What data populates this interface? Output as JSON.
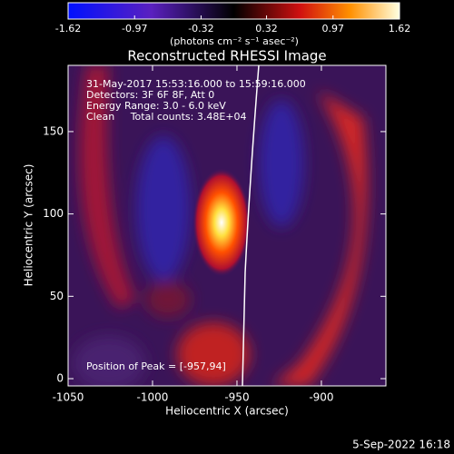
{
  "chart_data": {
    "type": "image",
    "title": "Reconstructed RHESSI Image",
    "colorbar_label": "(photons cm⁻² s⁻¹ asec⁻²)",
    "clim": [
      -1.62,
      1.62
    ],
    "cticks": [
      -1.62,
      -0.97,
      -0.32,
      0.32,
      0.97,
      1.62
    ],
    "x_label": "Heliocentric X (arcsec)",
    "y_label": "Heliocentric Y (arcsec)",
    "xlim": [
      -1050,
      -861.8
    ],
    "ylim": [
      -4.4,
      190.2
    ],
    "xticks": [
      -1050,
      -1000,
      -950,
      -900
    ],
    "yticks": [
      0,
      50,
      100,
      150
    ],
    "annotations": [
      "31-May-2017 15:53:16.000 to 15:59:16.000",
      "Detectors: 3F 6F 8F, Att 0",
      "Energy Range: 3.0 - 6.0 keV",
      "Clean     Total counts: 3.48E+04"
    ],
    "peak_label": "Position of Peak = [-957,94]",
    "footer": "5-Sep-2022 16:18"
  }
}
